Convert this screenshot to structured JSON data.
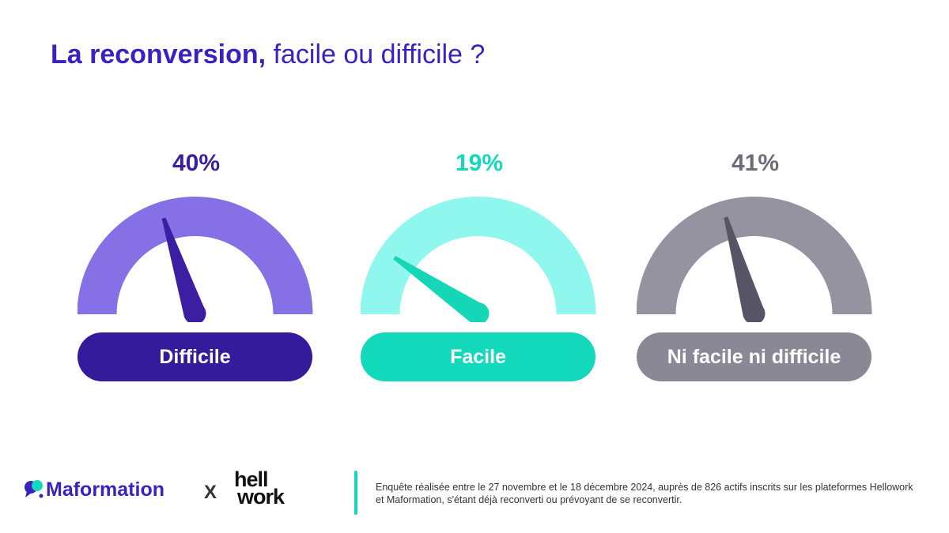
{
  "title": {
    "strong": "La reconversion,",
    "light": "facile ou difficile ?"
  },
  "chart_data": {
    "type": "gauge",
    "unit": "%",
    "categories": [
      "Difficile",
      "Facile",
      "Ni facile ni difficile"
    ],
    "values": [
      40,
      19,
      41
    ],
    "labels": [
      "40%",
      "19%",
      "41%"
    ],
    "range": [
      0,
      100
    ],
    "colors": {
      "arcs": [
        "#8670e6",
        "#8ff7ee",
        "#9593a0"
      ],
      "needles": [
        "#3b1ea1",
        "#16d6b8",
        "#575565"
      ],
      "pills": [
        "#341b9b",
        "#12d9bb",
        "#8b8896"
      ],
      "percent_text": [
        "#3b1ea1",
        "#12d9bb",
        "#6f6c7a"
      ]
    }
  },
  "footer": {
    "brand": "Maformation",
    "separator": "X",
    "partner_line1": "hell",
    "partner_line2": "work",
    "note": "Enquête réalisée entre le 27 novembre et le 18 décembre 2024, auprès de 826 actifs inscrits sur les plateformes Hellowork et Maformation, s'étant déjà reconverti ou prévoyant de se reconvertir."
  }
}
